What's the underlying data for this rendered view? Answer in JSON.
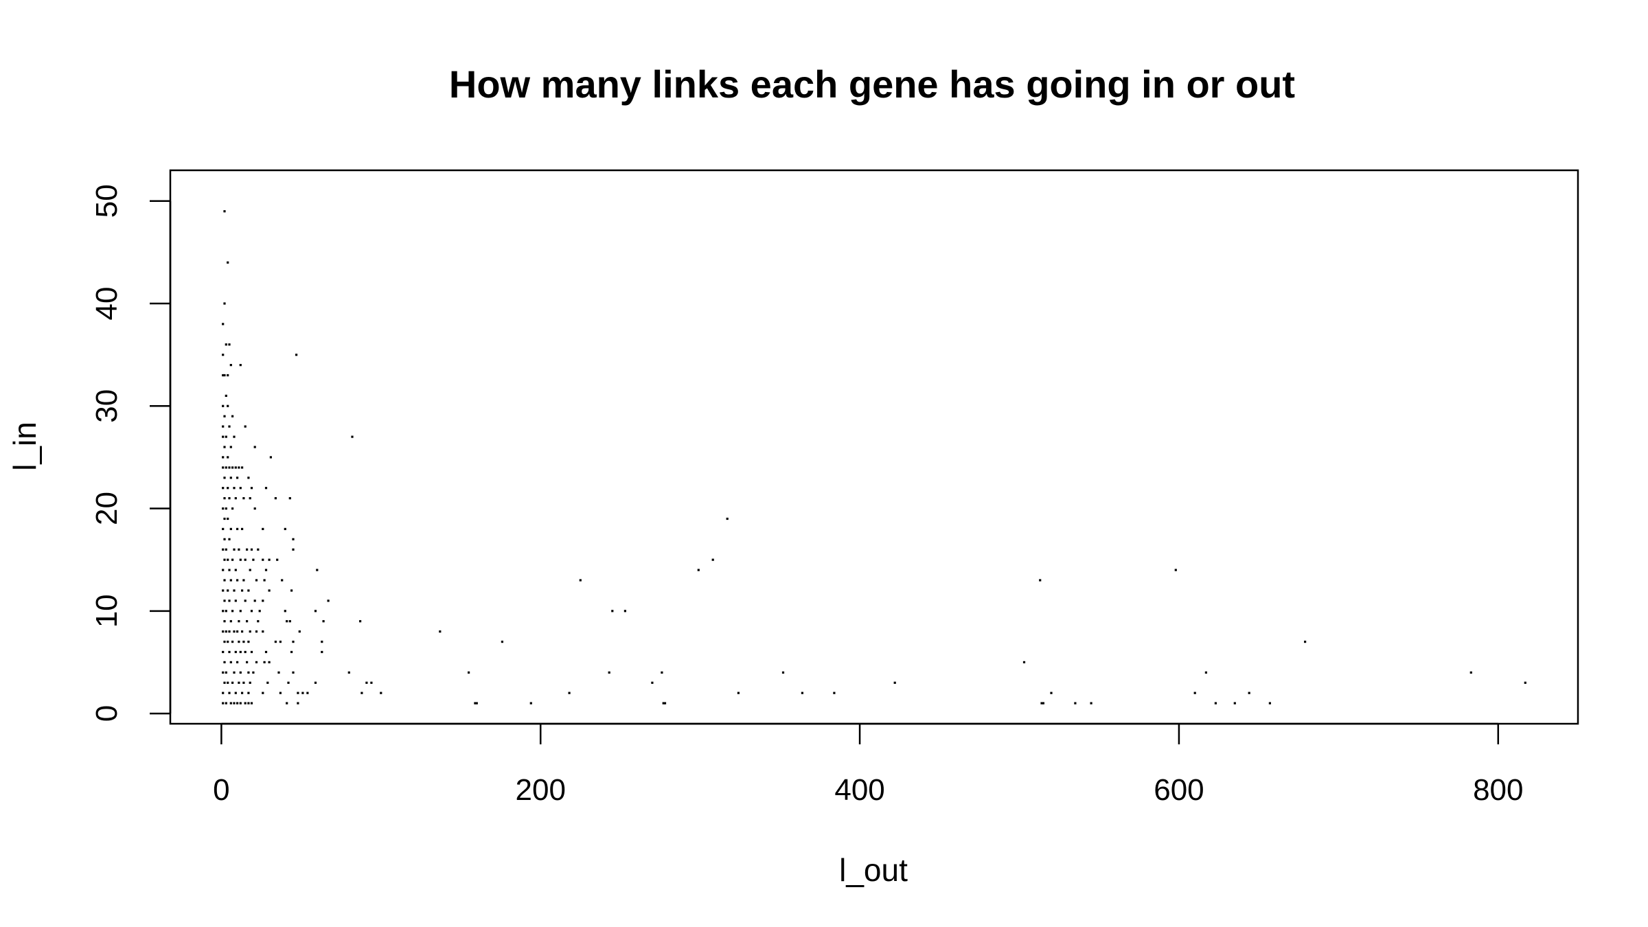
{
  "chart_data": {
    "type": "scatter",
    "title": "How many links each gene has going in or out",
    "xlabel": "l_out",
    "ylabel": "l_in",
    "xlim": [
      -32,
      850
    ],
    "ylim": [
      -1,
      53
    ],
    "xticks": [
      0,
      200,
      400,
      600,
      800
    ],
    "yticks": [
      0,
      10,
      20,
      30,
      40,
      50
    ],
    "grid": false,
    "legend": "none",
    "marker_color": "#000000",
    "points": [
      [
        2,
        49
      ],
      [
        4,
        44
      ],
      [
        2,
        40
      ],
      [
        1,
        38
      ],
      [
        3,
        36
      ],
      [
        5,
        36
      ],
      [
        1,
        35
      ],
      [
        6,
        34
      ],
      [
        12,
        34
      ],
      [
        47,
        35
      ],
      [
        1,
        33
      ],
      [
        2,
        33
      ],
      [
        4,
        33
      ],
      [
        3,
        31
      ],
      [
        1,
        30
      ],
      [
        4,
        30
      ],
      [
        2,
        29
      ],
      [
        7,
        29
      ],
      [
        1,
        28
      ],
      [
        5,
        28
      ],
      [
        15,
        28
      ],
      [
        1,
        27
      ],
      [
        3,
        27
      ],
      [
        8,
        27
      ],
      [
        82,
        27
      ],
      [
        2,
        26
      ],
      [
        6,
        26
      ],
      [
        21,
        26
      ],
      [
        1,
        25
      ],
      [
        4,
        25
      ],
      [
        31,
        25
      ],
      [
        1,
        24
      ],
      [
        3,
        24
      ],
      [
        5,
        24
      ],
      [
        7,
        24
      ],
      [
        9,
        24
      ],
      [
        11,
        24
      ],
      [
        13,
        24
      ],
      [
        2,
        23
      ],
      [
        6,
        23
      ],
      [
        10,
        23
      ],
      [
        17,
        23
      ],
      [
        1,
        22
      ],
      [
        4,
        22
      ],
      [
        8,
        22
      ],
      [
        12,
        22
      ],
      [
        19,
        22
      ],
      [
        28,
        22
      ],
      [
        2,
        21
      ],
      [
        5,
        21
      ],
      [
        9,
        21
      ],
      [
        14,
        21
      ],
      [
        18,
        21
      ],
      [
        34,
        21
      ],
      [
        43,
        21
      ],
      [
        1,
        20
      ],
      [
        3,
        20
      ],
      [
        7,
        20
      ],
      [
        21,
        20
      ],
      [
        2,
        19
      ],
      [
        4,
        19
      ],
      [
        317,
        19
      ],
      [
        1,
        18
      ],
      [
        6,
        18
      ],
      [
        10,
        18
      ],
      [
        13,
        18
      ],
      [
        26,
        18
      ],
      [
        40,
        18
      ],
      [
        2,
        17
      ],
      [
        5,
        17
      ],
      [
        45,
        17
      ],
      [
        1,
        16
      ],
      [
        3,
        16
      ],
      [
        8,
        16
      ],
      [
        11,
        16
      ],
      [
        16,
        16
      ],
      [
        19,
        16
      ],
      [
        23,
        16
      ],
      [
        45,
        16
      ],
      [
        2,
        15
      ],
      [
        4,
        15
      ],
      [
        7,
        15
      ],
      [
        12,
        15
      ],
      [
        15,
        15
      ],
      [
        20,
        15
      ],
      [
        26,
        15
      ],
      [
        30,
        15
      ],
      [
        35,
        15
      ],
      [
        308,
        15
      ],
      [
        1,
        14
      ],
      [
        5,
        14
      ],
      [
        9,
        14
      ],
      [
        18,
        14
      ],
      [
        28,
        14
      ],
      [
        60,
        14
      ],
      [
        299,
        14
      ],
      [
        598,
        14
      ],
      [
        2,
        13
      ],
      [
        6,
        13
      ],
      [
        10,
        13
      ],
      [
        14,
        13
      ],
      [
        22,
        13
      ],
      [
        27,
        13
      ],
      [
        38,
        13
      ],
      [
        225,
        13
      ],
      [
        513,
        13
      ],
      [
        1,
        12
      ],
      [
        4,
        12
      ],
      [
        8,
        12
      ],
      [
        13,
        12
      ],
      [
        17,
        12
      ],
      [
        30,
        12
      ],
      [
        44,
        12
      ],
      [
        2,
        11
      ],
      [
        5,
        11
      ],
      [
        9,
        11
      ],
      [
        15,
        11
      ],
      [
        21,
        11
      ],
      [
        26,
        11
      ],
      [
        67,
        11
      ],
      [
        1,
        10
      ],
      [
        3,
        10
      ],
      [
        7,
        10
      ],
      [
        12,
        10
      ],
      [
        19,
        10
      ],
      [
        24,
        10
      ],
      [
        40,
        10
      ],
      [
        59,
        10
      ],
      [
        245,
        10
      ],
      [
        253,
        10
      ],
      [
        2,
        9
      ],
      [
        6,
        9
      ],
      [
        11,
        9
      ],
      [
        16,
        9
      ],
      [
        23,
        9
      ],
      [
        41,
        9
      ],
      [
        43,
        9
      ],
      [
        64,
        9
      ],
      [
        87,
        9
      ],
      [
        1,
        8
      ],
      [
        3,
        8
      ],
      [
        5,
        8
      ],
      [
        8,
        8
      ],
      [
        10,
        8
      ],
      [
        13,
        8
      ],
      [
        18,
        8
      ],
      [
        22,
        8
      ],
      [
        26,
        8
      ],
      [
        49,
        8
      ],
      [
        137,
        8
      ],
      [
        2,
        7
      ],
      [
        4,
        7
      ],
      [
        7,
        7
      ],
      [
        11,
        7
      ],
      [
        14,
        7
      ],
      [
        17,
        7
      ],
      [
        34,
        7
      ],
      [
        37,
        7
      ],
      [
        45,
        7
      ],
      [
        63,
        7
      ],
      [
        176,
        7
      ],
      [
        679,
        7
      ],
      [
        1,
        6
      ],
      [
        5,
        6
      ],
      [
        9,
        6
      ],
      [
        12,
        6
      ],
      [
        15,
        6
      ],
      [
        19,
        6
      ],
      [
        28,
        6
      ],
      [
        44,
        6
      ],
      [
        63,
        6
      ],
      [
        2,
        5
      ],
      [
        6,
        5
      ],
      [
        10,
        5
      ],
      [
        16,
        5
      ],
      [
        22,
        5
      ],
      [
        27,
        5
      ],
      [
        30,
        5
      ],
      [
        503,
        5
      ],
      [
        1,
        4
      ],
      [
        3,
        4
      ],
      [
        8,
        4
      ],
      [
        12,
        4
      ],
      [
        17,
        4
      ],
      [
        20,
        4
      ],
      [
        36,
        4
      ],
      [
        45,
        4
      ],
      [
        80,
        4
      ],
      [
        155,
        4
      ],
      [
        243,
        4
      ],
      [
        276,
        4
      ],
      [
        352,
        4
      ],
      [
        617,
        4
      ],
      [
        783,
        4
      ],
      [
        2,
        3
      ],
      [
        4,
        3
      ],
      [
        7,
        3
      ],
      [
        11,
        3
      ],
      [
        14,
        3
      ],
      [
        18,
        3
      ],
      [
        29,
        3
      ],
      [
        42,
        3
      ],
      [
        59,
        3
      ],
      [
        91,
        3
      ],
      [
        94,
        3
      ],
      [
        270,
        3
      ],
      [
        422,
        3
      ],
      [
        817,
        3
      ],
      [
        1,
        2
      ],
      [
        5,
        2
      ],
      [
        9,
        2
      ],
      [
        13,
        2
      ],
      [
        17,
        2
      ],
      [
        26,
        2
      ],
      [
        37,
        2
      ],
      [
        48,
        2
      ],
      [
        51,
        2
      ],
      [
        54,
        2
      ],
      [
        88,
        2
      ],
      [
        100,
        2
      ],
      [
        218,
        2
      ],
      [
        324,
        2
      ],
      [
        364,
        2
      ],
      [
        384,
        2
      ],
      [
        520,
        2
      ],
      [
        610,
        2
      ],
      [
        644,
        2
      ],
      [
        1,
        1
      ],
      [
        3,
        1
      ],
      [
        6,
        1
      ],
      [
        8,
        1
      ],
      [
        10,
        1
      ],
      [
        12,
        1
      ],
      [
        15,
        1
      ],
      [
        17,
        1
      ],
      [
        19,
        1
      ],
      [
        41,
        1
      ],
      [
        48,
        1
      ],
      [
        159,
        1
      ],
      [
        160,
        1
      ],
      [
        194,
        1
      ],
      [
        277,
        1
      ],
      [
        278,
        1
      ],
      [
        514,
        1
      ],
      [
        515,
        1
      ],
      [
        535,
        1
      ],
      [
        545,
        1
      ],
      [
        623,
        1
      ],
      [
        635,
        1
      ],
      [
        657,
        1
      ]
    ]
  }
}
